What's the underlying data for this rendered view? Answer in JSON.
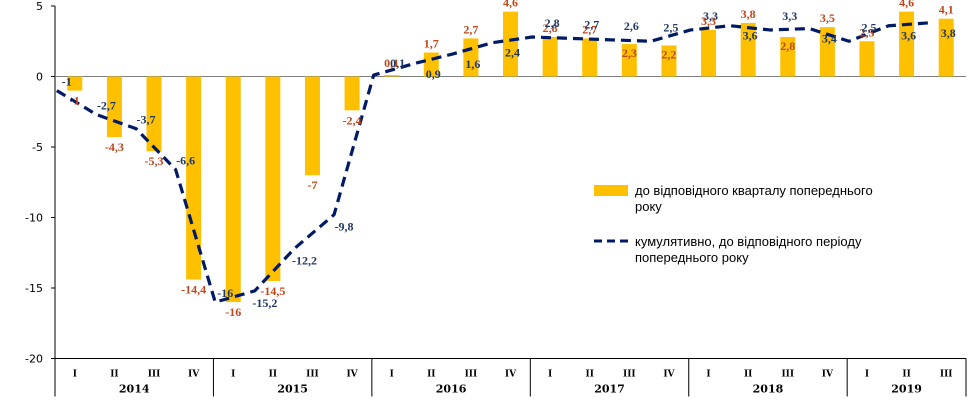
{
  "chart_data": {
    "type": "bar",
    "ylim": [
      -20,
      5
    ],
    "yticks": [
      5,
      0,
      -5,
      -10,
      -15,
      -20
    ],
    "grid": false,
    "legend_placement": "right",
    "quarters": [
      "I",
      "II",
      "III",
      "IV",
      "I",
      "II",
      "III",
      "IV",
      "I",
      "II",
      "III",
      "IV",
      "I",
      "II",
      "III",
      "IV",
      "I",
      "II",
      "III",
      "IV",
      "I",
      "II",
      "III"
    ],
    "years": [
      {
        "label": "2014",
        "count": 4
      },
      {
        "label": "2015",
        "count": 4
      },
      {
        "label": "2016",
        "count": 4
      },
      {
        "label": "2017",
        "count": 4
      },
      {
        "label": "2018",
        "count": 4
      },
      {
        "label": "2019",
        "count": 3
      }
    ],
    "series": [
      {
        "name": "до відповідного кварталу попереднього року",
        "type": "bar",
        "color": "#FFC000",
        "label_color": "#C0461B",
        "values": [
          -1,
          -4.3,
          -5.3,
          -14.4,
          -16,
          -14.5,
          -7,
          -2.4,
          0.1,
          1.7,
          2.7,
          4.6,
          2.8,
          2.7,
          2.3,
          2.2,
          3.3,
          3.8,
          2.8,
          3.5,
          2.5,
          4.6,
          4.1
        ],
        "labels": [
          "-1",
          "-4,3",
          "-5,3",
          "-14,4",
          "-16",
          "-14,5",
          "-7",
          "-2,4",
          "0,1",
          "1,7",
          "2,7",
          "4,6",
          "2,8",
          "2,7",
          "2,3",
          "2,2",
          "3,3",
          "3,8",
          "2,8",
          "3,5",
          "2,5",
          "4,6",
          "4,1"
        ]
      },
      {
        "name": "кумулятивно, до відповідного періоду попереднього року",
        "type": "line",
        "color": "#001A66",
        "label_color": "#1F3864",
        "values": [
          -1,
          -2.7,
          -3.7,
          -6.6,
          -16,
          -15.2,
          -12.2,
          -9.8,
          0.1,
          0.9,
          1.6,
          2.4,
          2.8,
          2.7,
          2.6,
          2.5,
          3.3,
          3.6,
          3.3,
          3.4,
          2.5,
          3.6,
          3.8
        ],
        "labels": [
          "-1",
          "-2,7",
          "-3,7",
          "-6,6",
          "-16",
          "-15,2",
          "-12,2",
          "-9,8",
          "0,1",
          "0,9",
          "1,6",
          "2,4",
          "2,8",
          "2,7",
          "2,6",
          "2,5",
          "3,3",
          "3,6",
          "3,3",
          "3,4",
          "2,5",
          "3,6",
          "3,8"
        ]
      }
    ]
  },
  "legend": {
    "bar_label_line1": "до відповідного кварталу попереднього",
    "bar_label_line2": "року",
    "line_label_line1": "кумулятивно, до відповідного періоду",
    "line_label_line2": "попереднього року"
  }
}
